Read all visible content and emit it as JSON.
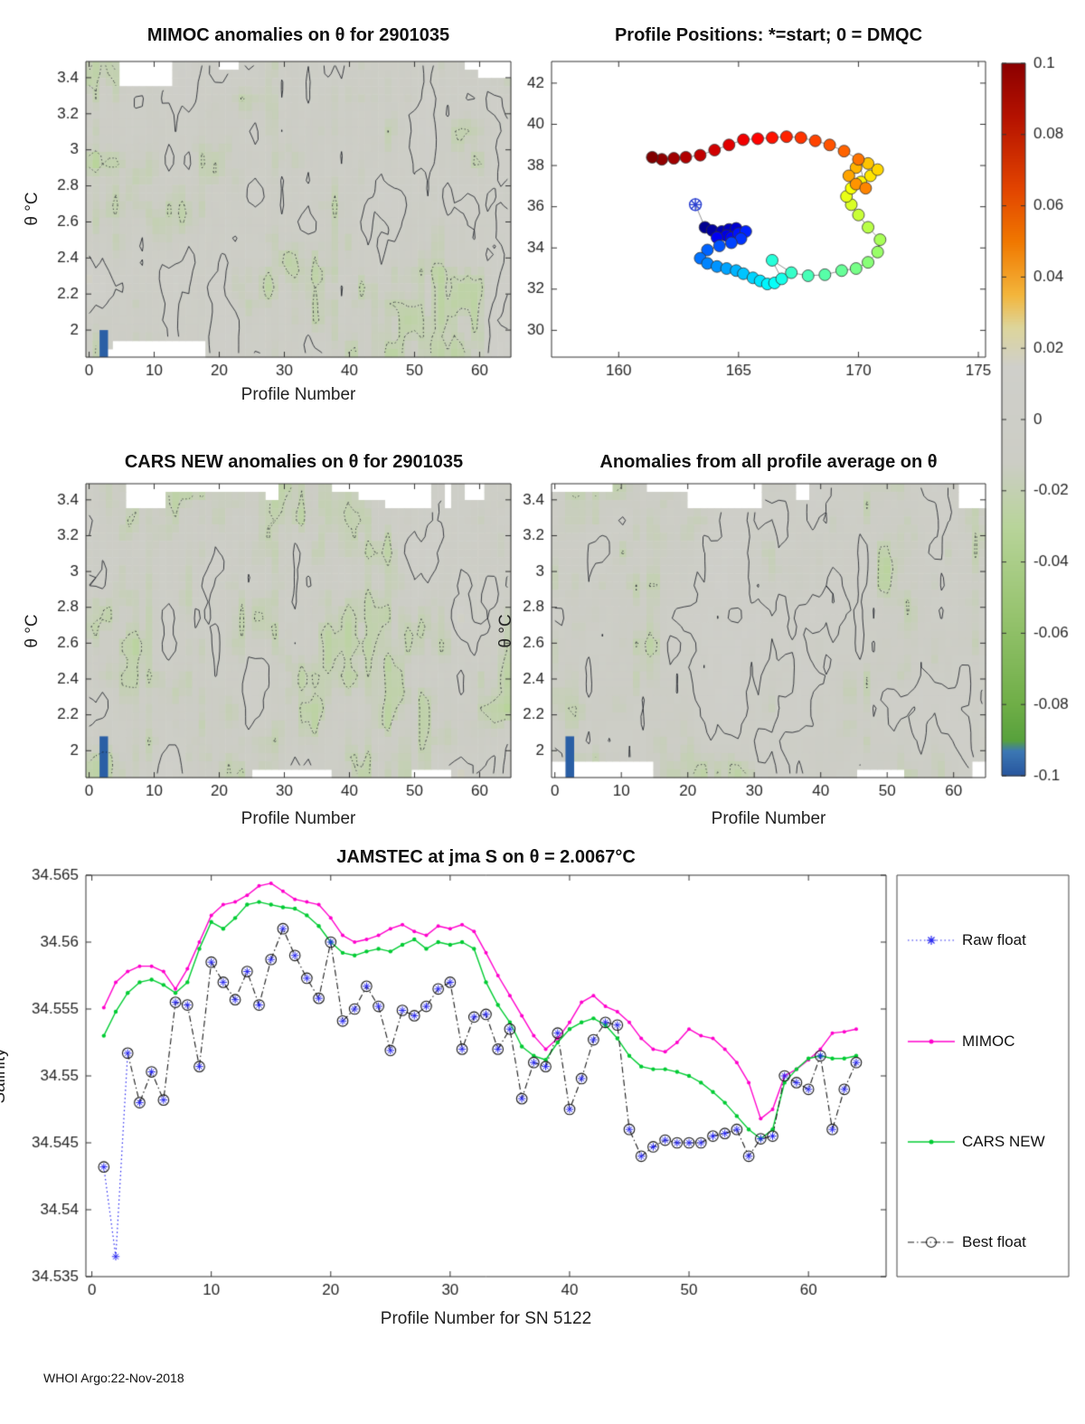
{
  "figure": {
    "footer": "WHOI Argo:22-Nov-2018"
  },
  "colorbar": {
    "tick_values": [
      0.1,
      0.08,
      0.06,
      0.04,
      0.02,
      0,
      -0.02,
      -0.04,
      -0.06,
      -0.08,
      -0.1
    ],
    "tick_labels": [
      "0.1",
      "0.08",
      "0.06",
      "0.04",
      "0.02",
      "0",
      "-0.02",
      "-0.04",
      "-0.06",
      "-0.08",
      "-0.1"
    ],
    "stops": [
      {
        "v": 0.1,
        "c": "#8c0000"
      },
      {
        "v": 0.085,
        "c": "#b51200"
      },
      {
        "v": 0.065,
        "c": "#e24400"
      },
      {
        "v": 0.05,
        "c": "#f07800"
      },
      {
        "v": 0.035,
        "c": "#f3b63c"
      },
      {
        "v": 0.026,
        "c": "#ddd59b"
      },
      {
        "v": 0.015,
        "c": "#cfcfca"
      },
      {
        "v": -0.012,
        "c": "#cccdc5"
      },
      {
        "v": -0.03,
        "c": "#b8d49a"
      },
      {
        "v": -0.055,
        "c": "#96c36e"
      },
      {
        "v": -0.08,
        "c": "#6fae47"
      },
      {
        "v": -0.09,
        "c": "#57a13c"
      },
      {
        "v": -0.093,
        "c": "#3c78b4"
      },
      {
        "v": -0.1,
        "c": "#27559e"
      }
    ]
  },
  "chart_data": [
    {
      "id": "mimoc-anomalies",
      "type": "heatmap",
      "title": "MIMOC anomalies on θ  for 2901035",
      "xlabel": "Profile Number",
      "ylabel": "θ  °C",
      "xlim": [
        -0.5,
        64.8
      ],
      "ylim": [
        1.85,
        3.49
      ],
      "xticks": [
        0,
        10,
        20,
        30,
        40,
        50,
        60
      ],
      "yticks": [
        2,
        2.2,
        2.4,
        2.6,
        2.8,
        3,
        3.2,
        3.4
      ],
      "color_range": [
        -0.1,
        0.1
      ],
      "field": {
        "seed": 7,
        "nx": 64,
        "ny": 36,
        "bias": -0.007,
        "amplitudes": [
          0.013,
          0.009,
          0.006
        ]
      },
      "contour_levels": {
        "solid": 0,
        "dotted": -0.02
      },
      "blue_mark": {
        "x": 1.6,
        "w": 1.3,
        "y_top": 2.0
      }
    },
    {
      "id": "profile-positions",
      "type": "scatter",
      "title": "Profile Positions: *=start; 0 = DMQC",
      "xlim": [
        157.2,
        175.3
      ],
      "ylim": [
        28.7,
        43.05
      ],
      "xticks": [
        160,
        165,
        170,
        175
      ],
      "yticks": [
        30,
        32,
        34,
        36,
        38,
        40,
        42
      ],
      "colormap": "jet",
      "start_marker": "*",
      "points": [
        [
          163.2,
          36.1
        ],
        [
          163.6,
          35.0
        ],
        [
          163.9,
          34.85
        ],
        [
          164.3,
          34.8
        ],
        [
          164.6,
          34.9
        ],
        [
          164.9,
          34.95
        ],
        [
          164.5,
          34.6
        ],
        [
          164.1,
          34.5
        ],
        [
          164.7,
          34.5
        ],
        [
          165.0,
          34.7
        ],
        [
          165.3,
          34.8
        ],
        [
          165.1,
          34.45
        ],
        [
          164.7,
          34.25
        ],
        [
          164.2,
          34.1
        ],
        [
          163.7,
          33.9
        ],
        [
          163.4,
          33.5
        ],
        [
          163.7,
          33.25
        ],
        [
          164.1,
          33.1
        ],
        [
          164.5,
          33.0
        ],
        [
          164.9,
          32.9
        ],
        [
          165.2,
          32.75
        ],
        [
          165.6,
          32.55
        ],
        [
          165.9,
          32.4
        ],
        [
          166.2,
          32.25
        ],
        [
          166.5,
          32.3
        ],
        [
          166.8,
          32.5
        ],
        [
          166.4,
          33.4
        ],
        [
          167.2,
          32.8
        ],
        [
          167.9,
          32.65
        ],
        [
          168.6,
          32.7
        ],
        [
          169.3,
          32.9
        ],
        [
          169.9,
          33.0
        ],
        [
          170.4,
          33.3
        ],
        [
          170.8,
          33.8
        ],
        [
          170.9,
          34.4
        ],
        [
          170.4,
          35.0
        ],
        [
          170.0,
          35.6
        ],
        [
          169.7,
          36.1
        ],
        [
          169.5,
          36.5
        ],
        [
          169.7,
          36.9
        ],
        [
          170.1,
          37.2
        ],
        [
          170.5,
          37.5
        ],
        [
          170.8,
          37.8
        ],
        [
          170.4,
          38.1
        ],
        [
          169.9,
          37.9
        ],
        [
          169.6,
          37.5
        ],
        [
          169.9,
          37.1
        ],
        [
          170.3,
          36.9
        ],
        [
          170.0,
          38.3
        ],
        [
          169.4,
          38.7
        ],
        [
          168.8,
          39.0
        ],
        [
          168.2,
          39.2
        ],
        [
          167.6,
          39.35
        ],
        [
          167.0,
          39.4
        ],
        [
          166.4,
          39.35
        ],
        [
          165.8,
          39.3
        ],
        [
          165.2,
          39.25
        ],
        [
          164.6,
          39.0
        ],
        [
          164.0,
          38.75
        ],
        [
          163.4,
          38.5
        ],
        [
          162.8,
          38.4
        ],
        [
          162.3,
          38.35
        ],
        [
          161.8,
          38.3
        ],
        [
          161.4,
          38.4
        ]
      ]
    },
    {
      "id": "cars-new-anomalies",
      "type": "heatmap",
      "title": "CARS NEW anomalies on θ for 2901035",
      "xlabel": "Profile Number",
      "ylabel": "θ  °C",
      "xlim": [
        -0.5,
        64.8
      ],
      "ylim": [
        1.85,
        3.49
      ],
      "xticks": [
        0,
        10,
        20,
        30,
        40,
        50,
        60
      ],
      "yticks": [
        2,
        2.2,
        2.4,
        2.6,
        2.8,
        3,
        3.2,
        3.4
      ],
      "color_range": [
        -0.1,
        0.1
      ],
      "field": {
        "seed": 13,
        "nx": 64,
        "ny": 36,
        "bias": -0.007,
        "amplitudes": [
          0.013,
          0.009,
          0.006
        ]
      },
      "contour_levels": {
        "solid": 0,
        "dotted": -0.02
      },
      "blue_mark": {
        "x": 1.6,
        "w": 1.3,
        "y_top": 2.08
      }
    },
    {
      "id": "all-profile-average-anomalies",
      "type": "heatmap",
      "title": "Anomalies from all profile average on θ",
      "xlabel": "Profile Number",
      "ylabel": "θ  °C",
      "xlim": [
        -0.5,
        64.8
      ],
      "ylim": [
        1.85,
        3.49
      ],
      "xticks": [
        0,
        10,
        20,
        30,
        40,
        50,
        60
      ],
      "yticks": [
        2,
        2.2,
        2.4,
        2.6,
        2.8,
        3,
        3.2,
        3.4
      ],
      "color_range": [
        -0.1,
        0.1
      ],
      "field": {
        "seed": 21,
        "nx": 64,
        "ny": 36,
        "bias": -0.006,
        "amplitudes": [
          0.013,
          0.01,
          0.006
        ]
      },
      "contour_levels": {
        "solid": 0,
        "dotted": -0.02
      },
      "blue_mark": {
        "x": 1.6,
        "w": 1.3,
        "y_top": 2.08
      }
    },
    {
      "id": "jamstec-salinity",
      "type": "line",
      "title": "JAMSTEC at jma S on θ = 2.0067°C",
      "xlabel": "Profile Number for SN 5122",
      "ylabel": "Salinity",
      "xlim": [
        -0.5,
        66.5
      ],
      "ylim": [
        34.535,
        34.565
      ],
      "xticks": [
        0,
        10,
        20,
        30,
        40,
        50,
        60
      ],
      "ytick_values": [
        34.535,
        34.54,
        34.545,
        34.55,
        34.555,
        34.56,
        34.565
      ],
      "ytick_labels": [
        "34.535",
        "34.54",
        "34.545",
        "34.55",
        "34.555",
        "34.56",
        "34.565"
      ],
      "legend": [
        "Raw float",
        "MIMOC",
        "CARS NEW",
        "Best float"
      ],
      "series": [
        {
          "name": "Raw float",
          "color": "#2929f0",
          "style": "dotted",
          "marker": "asterisk",
          "values": [
            34.5432,
            34.5365,
            34.5517,
            34.548,
            34.5503,
            34.5482,
            34.5555,
            34.5553,
            34.5507,
            34.5585,
            34.557,
            34.5557,
            34.5578,
            34.5553,
            34.5587,
            34.561,
            34.559,
            34.5573,
            34.5558,
            34.56,
            34.5541,
            34.555,
            34.5567,
            34.5552,
            34.5519,
            34.5549,
            34.5545,
            34.5552,
            34.5565,
            34.557,
            34.552,
            34.5544,
            34.5546,
            34.552,
            34.5535,
            34.5483,
            34.551,
            34.5507,
            34.5532,
            34.5475,
            34.5498,
            34.5527,
            34.554,
            34.5538,
            34.546,
            34.544,
            34.5447,
            34.5452,
            34.545,
            34.545,
            34.545,
            34.5455,
            34.5457,
            34.546,
            34.544,
            34.5453,
            34.5455,
            34.55,
            34.5495,
            34.549,
            34.5515,
            34.546,
            34.549,
            34.551
          ]
        },
        {
          "name": "MIMOC",
          "color": "#ff00cc",
          "style": "solid",
          "marker": "dot",
          "values": [
            34.5551,
            34.557,
            34.5578,
            34.5582,
            34.5582,
            34.5578,
            34.5565,
            34.558,
            34.56,
            34.562,
            34.5628,
            34.563,
            34.5635,
            34.5642,
            34.5644,
            34.5638,
            34.5632,
            34.563,
            34.5628,
            34.5618,
            34.5605,
            34.56,
            34.5602,
            34.5605,
            34.561,
            34.5613,
            34.5608,
            34.5605,
            34.5612,
            34.561,
            34.5613,
            34.5608,
            34.5592,
            34.5575,
            34.556,
            34.5545,
            34.553,
            34.552,
            34.5528,
            34.554,
            34.5555,
            34.556,
            34.5552,
            34.5548,
            34.554,
            34.5528,
            34.552,
            34.5518,
            34.5525,
            34.5535,
            34.553,
            34.5528,
            34.552,
            34.551,
            34.5495,
            34.5468,
            34.5475,
            34.55,
            34.5505,
            34.5512,
            34.552,
            34.5532,
            34.5533,
            34.5535
          ]
        },
        {
          "name": "CARS NEW",
          "color": "#00cc33",
          "style": "solid",
          "marker": "dot",
          "values": [
            34.553,
            34.5548,
            34.5562,
            34.557,
            34.5572,
            34.5568,
            34.5562,
            34.557,
            34.5595,
            34.5615,
            34.561,
            34.5618,
            34.5628,
            34.563,
            34.5628,
            34.5626,
            34.5625,
            34.562,
            34.5612,
            34.56,
            34.5592,
            34.559,
            34.5593,
            34.5595,
            34.5593,
            34.5598,
            34.5602,
            34.5595,
            34.56,
            34.5598,
            34.56,
            34.5595,
            34.557,
            34.5553,
            34.554,
            34.5522,
            34.5515,
            34.5512,
            34.5525,
            34.5535,
            34.554,
            34.5543,
            34.5538,
            34.5528,
            34.5515,
            34.5507,
            34.5505,
            34.5505,
            34.5503,
            34.55,
            34.5495,
            34.5488,
            34.548,
            34.547,
            34.546,
            34.5453,
            34.546,
            34.5495,
            34.5505,
            34.5513,
            34.5515,
            34.5513,
            34.5513,
            34.5515
          ]
        },
        {
          "name": "Best float",
          "color": "#1a1a1a",
          "style": "dashdot",
          "marker": "circle",
          "values": [
            34.5432,
            null,
            34.5517,
            34.548,
            34.5503,
            34.5482,
            34.5555,
            34.5553,
            34.5507,
            34.5585,
            34.557,
            34.5557,
            34.5578,
            34.5553,
            34.5587,
            34.561,
            34.559,
            34.5573,
            34.5558,
            34.56,
            34.5541,
            34.555,
            34.5567,
            34.5552,
            34.5519,
            34.5549,
            34.5545,
            34.5552,
            34.5565,
            34.557,
            34.552,
            34.5544,
            34.5546,
            34.552,
            34.5535,
            34.5483,
            34.551,
            34.5507,
            34.5532,
            34.5475,
            34.5498,
            34.5527,
            34.554,
            34.5538,
            34.546,
            34.544,
            34.5447,
            34.5452,
            34.545,
            34.545,
            34.545,
            34.5455,
            34.5457,
            34.546,
            34.544,
            34.5453,
            34.5455,
            34.55,
            34.5495,
            34.549,
            34.5515,
            34.546,
            34.549,
            34.551
          ]
        }
      ]
    }
  ]
}
